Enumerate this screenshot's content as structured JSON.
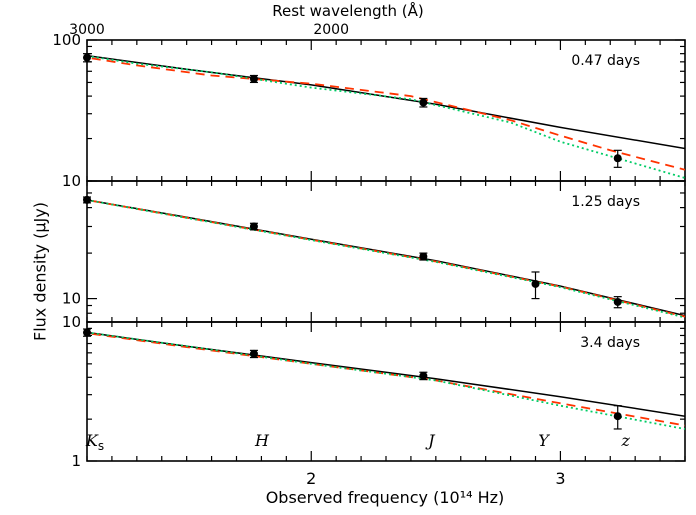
{
  "figure": {
    "ylabel": "Flux density (μJy)",
    "xlabel": "Observed frequency (10¹⁴ Hz)",
    "top_axis_label": "Rest wavelength (Å)"
  },
  "colors": {
    "model_solid": "#000000",
    "model_dashed": "#ff3300",
    "model_dotted": "#00cc66",
    "data_points": "#000000"
  },
  "chart_data": [
    {
      "type": "scatter",
      "panel_label": "0.47 days",
      "y_scale": "log",
      "ylim": [
        10,
        100
      ],
      "ytick_labels": [
        "10",
        "100"
      ],
      "xlim": [
        1.1,
        3.5
      ],
      "xticks": [
        2,
        3
      ],
      "xtick_labels": [
        "2",
        "3"
      ],
      "top_xticks": [
        {
          "label": "3000",
          "x": 1.1
        },
        {
          "label": "2000",
          "x": 2.08
        }
      ],
      "bands": [
        {
          "label": "Ks",
          "x": 1.1
        },
        {
          "label": "H",
          "x": 1.77
        },
        {
          "label": "J",
          "x": 2.45
        },
        {
          "label": "Y",
          "x": 2.9
        },
        {
          "label": "z",
          "x": 3.23
        }
      ],
      "points": [
        {
          "x": 1.1,
          "y": 75,
          "yerr": 5
        },
        {
          "x": 1.77,
          "y": 53,
          "yerr": 3
        },
        {
          "x": 2.45,
          "y": 36,
          "yerr": 2.5
        },
        {
          "x": 3.23,
          "y": 14.5,
          "yerr": 2
        }
      ],
      "series": [
        {
          "style": "solid",
          "color": "#000000",
          "x": [
            1.0,
            1.5,
            2.0,
            2.5,
            3.0,
            3.5
          ],
          "y": [
            82,
            62,
            48,
            35,
            24,
            17
          ]
        },
        {
          "style": "dashed",
          "color": "#ff3300",
          "x": [
            1.0,
            1.3,
            1.6,
            2.0,
            2.4,
            2.8,
            3.0,
            3.2,
            3.5
          ],
          "y": [
            80,
            66,
            56,
            49,
            40,
            27,
            21,
            16.5,
            12
          ]
        },
        {
          "style": "dotted",
          "color": "#00cc66",
          "x": [
            1.0,
            1.3,
            1.6,
            2.0,
            2.4,
            2.8,
            3.0,
            3.2,
            3.5
          ],
          "y": [
            82,
            68,
            59,
            46,
            38,
            26,
            19,
            15,
            10.5
          ]
        }
      ]
    },
    {
      "type": "scatter",
      "panel_label": "1.25 days",
      "y_scale": "log",
      "ylim": [
        7,
        60
      ],
      "ytick_labels": [
        "10"
      ],
      "xlim": [
        1.1,
        3.5
      ],
      "xticks": [
        2,
        3
      ],
      "xtick_labels": [
        "2",
        "3"
      ],
      "bands": [
        {
          "label": "Ks",
          "x": 1.1
        },
        {
          "label": "H",
          "x": 1.77
        },
        {
          "label": "J",
          "x": 2.45
        },
        {
          "label": "Y",
          "x": 2.9
        },
        {
          "label": "z",
          "x": 3.23
        }
      ],
      "points": [
        {
          "x": 1.1,
          "y": 45,
          "yerr": 2
        },
        {
          "x": 1.77,
          "y": 30,
          "yerr": 1.5
        },
        {
          "x": 2.45,
          "y": 19,
          "yerr": 1
        },
        {
          "x": 2.9,
          "y": 12.5,
          "yerr": 2.5
        },
        {
          "x": 3.23,
          "y": 9.5,
          "yerr": 0.8
        }
      ],
      "series": [
        {
          "style": "solid",
          "color": "#000000",
          "x": [
            1.0,
            1.5,
            2.0,
            2.5,
            3.0,
            3.5
          ],
          "y": [
            48,
            34.5,
            24.7,
            17.8,
            12.1,
            7.7
          ]
        },
        {
          "style": "dashed",
          "color": "#ff3300",
          "x": [
            1.0,
            1.5,
            2.0,
            2.5,
            3.0,
            3.5
          ],
          "y": [
            48,
            34.3,
            24.5,
            17.6,
            12.0,
            7.6
          ]
        },
        {
          "style": "dotted",
          "color": "#00cc66",
          "x": [
            1.0,
            1.5,
            2.0,
            2.5,
            3.0,
            3.5
          ],
          "y": [
            48,
            34.2,
            24.4,
            17.5,
            11.9,
            7.5
          ]
        }
      ]
    },
    {
      "type": "scatter",
      "panel_label": "3.4 days",
      "y_scale": "log",
      "ylim": [
        1,
        10
      ],
      "ytick_labels": [
        "1",
        "10"
      ],
      "xlim": [
        1.1,
        3.5
      ],
      "xticks": [
        2,
        3
      ],
      "xtick_labels": [
        "2",
        "3"
      ],
      "bands": [
        {
          "label": "Ks",
          "x": 1.1
        },
        {
          "label": "H",
          "x": 1.77
        },
        {
          "label": "J",
          "x": 2.45
        },
        {
          "label": "Y",
          "x": 2.9
        },
        {
          "label": "z",
          "x": 3.23
        }
      ],
      "points": [
        {
          "x": 1.1,
          "y": 8.4,
          "yerr": 0.5
        },
        {
          "x": 1.77,
          "y": 5.9,
          "yerr": 0.35
        },
        {
          "x": 2.45,
          "y": 4.1,
          "yerr": 0.25
        },
        {
          "x": 3.23,
          "y": 2.1,
          "yerr": 0.4
        }
      ],
      "series": [
        {
          "style": "solid",
          "color": "#000000",
          "x": [
            1.0,
            1.5,
            2.0,
            2.5,
            3.0,
            3.5
          ],
          "y": [
            8.9,
            6.7,
            5.1,
            3.9,
            2.9,
            2.1
          ]
        },
        {
          "style": "dashed",
          "color": "#ff3300",
          "x": [
            1.0,
            1.5,
            2.0,
            2.5,
            3.0,
            3.5
          ],
          "y": [
            8.8,
            6.6,
            5.0,
            3.8,
            2.6,
            1.8
          ]
        },
        {
          "style": "dotted",
          "color": "#00cc66",
          "x": [
            1.0,
            1.5,
            2.0,
            2.5,
            3.0,
            3.5
          ],
          "y": [
            8.9,
            6.7,
            5.0,
            3.8,
            2.5,
            1.7
          ]
        }
      ]
    }
  ]
}
